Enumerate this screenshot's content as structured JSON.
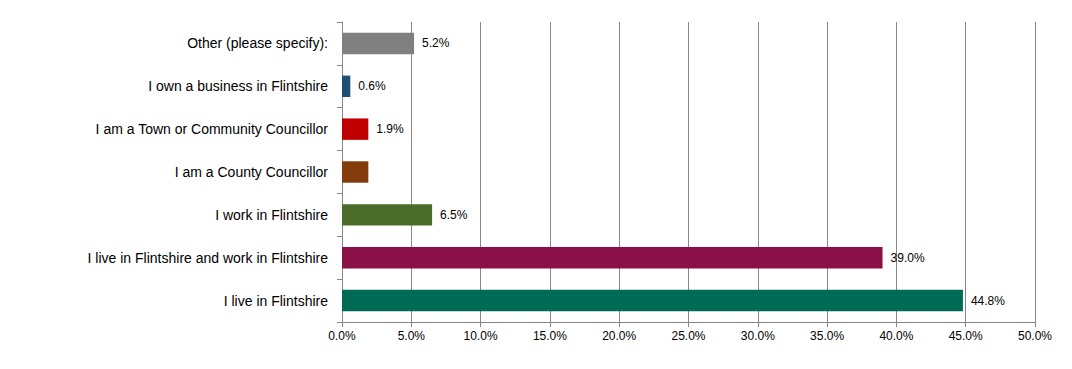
{
  "chart_data": {
    "type": "bar",
    "orientation": "horizontal",
    "categories": [
      "Other (please specify):",
      "I own a business in Flintshire",
      "I am a Town or Community Councillor",
      "I am a County Councillor",
      "I work in Flintshire",
      "I live in Flintshire and work in Flintshire",
      "I live in Flintshire"
    ],
    "values": [
      5.2,
      0.6,
      1.9,
      1.9,
      6.5,
      39.0,
      44.8
    ],
    "value_labels": [
      "5.2%",
      "0.6%",
      "1.9%",
      null,
      "6.5%",
      "39.0%",
      "44.8%"
    ],
    "colors": [
      "#808080",
      "#1F4E79",
      "#C00000",
      "#843C0C",
      "#4A6E2A",
      "#8B1048",
      "#006B54"
    ],
    "xlim": [
      0,
      50
    ],
    "xticks": [
      {
        "value": 0,
        "label": "0.0%"
      },
      {
        "value": 5,
        "label": "5.0%"
      },
      {
        "value": 10,
        "label": "10.0%"
      },
      {
        "value": 15,
        "label": "15.0%"
      },
      {
        "value": 20,
        "label": "20.0%"
      },
      {
        "value": 25,
        "label": "25.0%"
      },
      {
        "value": 30,
        "label": "30.0%"
      },
      {
        "value": 35,
        "label": "35.0%"
      },
      {
        "value": 40,
        "label": "40.0%"
      },
      {
        "value": 45,
        "label": "45.0%"
      },
      {
        "value": 50,
        "label": "50.0%"
      }
    ],
    "grid": true,
    "data_labels": true
  }
}
